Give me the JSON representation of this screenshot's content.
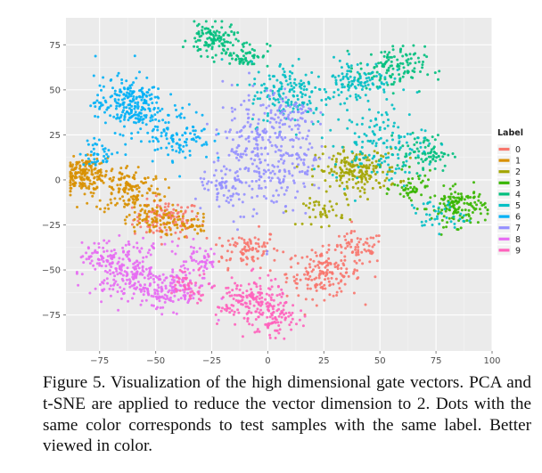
{
  "chart_data": {
    "type": "scatter",
    "title": "",
    "xlabel": "",
    "ylabel": "",
    "xlim": [
      -90,
      100
    ],
    "ylim": [
      -95,
      90
    ],
    "x_ticks": [
      "-75",
      "-50",
      "-25",
      "0",
      "25",
      "50",
      "75",
      "100"
    ],
    "x_tick_values": [
      -75,
      -50,
      -25,
      0,
      25,
      50,
      75,
      100
    ],
    "y_ticks": [
      "75",
      "50",
      "25",
      "0",
      "-25",
      "-50",
      "-75"
    ],
    "y_tick_values": [
      75,
      50,
      25,
      0,
      -25,
      -50,
      -75
    ],
    "grid": true,
    "background": "#ebebeb",
    "legend": {
      "title": "Label",
      "placement": "right",
      "entries": [
        "0",
        "1",
        "2",
        "3",
        "4",
        "5",
        "6",
        "7",
        "8",
        "9"
      ]
    },
    "series": [
      {
        "name": "0",
        "color": "#f8766d",
        "clusters": [
          [
            -45,
            -22,
            10,
            7,
            110
          ],
          [
            -10,
            -38,
            10,
            7,
            90
          ],
          [
            25,
            -52,
            11,
            9,
            160
          ],
          [
            40,
            -38,
            8,
            6,
            60
          ]
        ]
      },
      {
        "name": "1",
        "color": "#d89000",
        "clusters": [
          [
            -82,
            3,
            7,
            6,
            170
          ],
          [
            -62,
            -5,
            10,
            9,
            150
          ],
          [
            -52,
            -22,
            8,
            6,
            80
          ],
          [
            -35,
            -25,
            6,
            4,
            40
          ]
        ]
      },
      {
        "name": "2",
        "color": "#a3a500",
        "clusters": [
          [
            40,
            5,
            12,
            8,
            200
          ],
          [
            25,
            -18,
            6,
            5,
            40
          ]
        ]
      },
      {
        "name": "3",
        "color": "#39b600",
        "clusters": [
          [
            85,
            -15,
            8,
            7,
            140
          ],
          [
            65,
            -5,
            6,
            6,
            50
          ]
        ]
      },
      {
        "name": "4",
        "color": "#00bf7d",
        "clusters": [
          [
            -25,
            78,
            7,
            6,
            110
          ],
          [
            -10,
            70,
            7,
            5,
            60
          ],
          [
            55,
            62,
            10,
            8,
            120
          ],
          [
            70,
            15,
            8,
            7,
            80
          ]
        ]
      },
      {
        "name": "5",
        "color": "#00bfc4",
        "clusters": [
          [
            10,
            48,
            12,
            12,
            160
          ],
          [
            40,
            55,
            10,
            8,
            110
          ],
          [
            50,
            20,
            14,
            14,
            140
          ],
          [
            75,
            -20,
            8,
            6,
            40
          ]
        ]
      },
      {
        "name": "6",
        "color": "#00b0f6",
        "clusters": [
          [
            -62,
            42,
            10,
            10,
            240
          ],
          [
            -40,
            25,
            10,
            10,
            110
          ],
          [
            -75,
            15,
            6,
            5,
            40
          ]
        ]
      },
      {
        "name": "7",
        "color": "#9590ff",
        "clusters": [
          [
            -5,
            15,
            10,
            24,
            240
          ],
          [
            15,
            10,
            7,
            14,
            70
          ],
          [
            -20,
            -5,
            8,
            8,
            60
          ],
          [
            10,
            35,
            8,
            8,
            60
          ]
        ]
      },
      {
        "name": "8",
        "color": "#e76bf3",
        "clusters": [
          [
            -62,
            -50,
            11,
            10,
            200
          ],
          [
            -45,
            -62,
            12,
            7,
            140
          ],
          [
            -75,
            -42,
            6,
            5,
            50
          ],
          [
            -30,
            -45,
            6,
            7,
            50
          ]
        ]
      },
      {
        "name": "9",
        "color": "#ff62bc",
        "clusters": [
          [
            -8,
            -68,
            10,
            9,
            170
          ],
          [
            5,
            -78,
            6,
            6,
            70
          ],
          [
            -35,
            -58,
            6,
            6,
            50
          ]
        ]
      }
    ]
  },
  "caption": "Figure 5. Visualization of the high dimensional gate vectors. PCA and t-SNE are applied to reduce the vector dimension to 2. Dots with the same color corresponds to test samples with the same label. Better viewed in color."
}
